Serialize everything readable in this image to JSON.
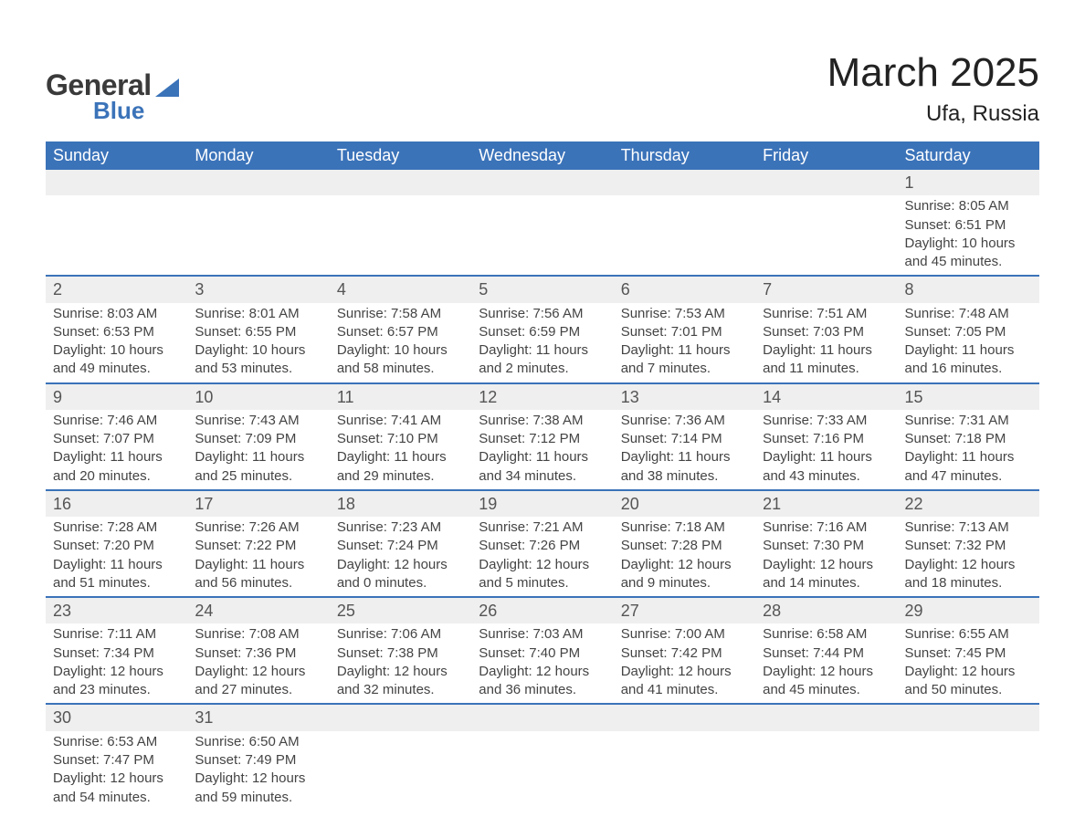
{
  "brand": {
    "word1": "General",
    "word2": "Blue"
  },
  "header": {
    "title": "March 2025",
    "location": "Ufa, Russia"
  },
  "colors": {
    "header_bg": "#3b73b9",
    "header_text": "#ffffff",
    "daynum_bg": "#efefef",
    "row_divider": "#3b73b9",
    "body_text": "#444444",
    "page_bg": "#ffffff"
  },
  "typography": {
    "title_fontsize": 44,
    "location_fontsize": 24,
    "weekday_fontsize": 18,
    "daynum_fontsize": 18,
    "cell_fontsize": 15
  },
  "calendar": {
    "weekdays": [
      "Sunday",
      "Monday",
      "Tuesday",
      "Wednesday",
      "Thursday",
      "Friday",
      "Saturday"
    ],
    "weeks": [
      [
        null,
        null,
        null,
        null,
        null,
        null,
        {
          "day": "1",
          "sunrise": "Sunrise: 8:05 AM",
          "sunset": "Sunset: 6:51 PM",
          "day1": "Daylight: 10 hours",
          "day2": "and 45 minutes."
        }
      ],
      [
        {
          "day": "2",
          "sunrise": "Sunrise: 8:03 AM",
          "sunset": "Sunset: 6:53 PM",
          "day1": "Daylight: 10 hours",
          "day2": "and 49 minutes."
        },
        {
          "day": "3",
          "sunrise": "Sunrise: 8:01 AM",
          "sunset": "Sunset: 6:55 PM",
          "day1": "Daylight: 10 hours",
          "day2": "and 53 minutes."
        },
        {
          "day": "4",
          "sunrise": "Sunrise: 7:58 AM",
          "sunset": "Sunset: 6:57 PM",
          "day1": "Daylight: 10 hours",
          "day2": "and 58 minutes."
        },
        {
          "day": "5",
          "sunrise": "Sunrise: 7:56 AM",
          "sunset": "Sunset: 6:59 PM",
          "day1": "Daylight: 11 hours",
          "day2": "and 2 minutes."
        },
        {
          "day": "6",
          "sunrise": "Sunrise: 7:53 AM",
          "sunset": "Sunset: 7:01 PM",
          "day1": "Daylight: 11 hours",
          "day2": "and 7 minutes."
        },
        {
          "day": "7",
          "sunrise": "Sunrise: 7:51 AM",
          "sunset": "Sunset: 7:03 PM",
          "day1": "Daylight: 11 hours",
          "day2": "and 11 minutes."
        },
        {
          "day": "8",
          "sunrise": "Sunrise: 7:48 AM",
          "sunset": "Sunset: 7:05 PM",
          "day1": "Daylight: 11 hours",
          "day2": "and 16 minutes."
        }
      ],
      [
        {
          "day": "9",
          "sunrise": "Sunrise: 7:46 AM",
          "sunset": "Sunset: 7:07 PM",
          "day1": "Daylight: 11 hours",
          "day2": "and 20 minutes."
        },
        {
          "day": "10",
          "sunrise": "Sunrise: 7:43 AM",
          "sunset": "Sunset: 7:09 PM",
          "day1": "Daylight: 11 hours",
          "day2": "and 25 minutes."
        },
        {
          "day": "11",
          "sunrise": "Sunrise: 7:41 AM",
          "sunset": "Sunset: 7:10 PM",
          "day1": "Daylight: 11 hours",
          "day2": "and 29 minutes."
        },
        {
          "day": "12",
          "sunrise": "Sunrise: 7:38 AM",
          "sunset": "Sunset: 7:12 PM",
          "day1": "Daylight: 11 hours",
          "day2": "and 34 minutes."
        },
        {
          "day": "13",
          "sunrise": "Sunrise: 7:36 AM",
          "sunset": "Sunset: 7:14 PM",
          "day1": "Daylight: 11 hours",
          "day2": "and 38 minutes."
        },
        {
          "day": "14",
          "sunrise": "Sunrise: 7:33 AM",
          "sunset": "Sunset: 7:16 PM",
          "day1": "Daylight: 11 hours",
          "day2": "and 43 minutes."
        },
        {
          "day": "15",
          "sunrise": "Sunrise: 7:31 AM",
          "sunset": "Sunset: 7:18 PM",
          "day1": "Daylight: 11 hours",
          "day2": "and 47 minutes."
        }
      ],
      [
        {
          "day": "16",
          "sunrise": "Sunrise: 7:28 AM",
          "sunset": "Sunset: 7:20 PM",
          "day1": "Daylight: 11 hours",
          "day2": "and 51 minutes."
        },
        {
          "day": "17",
          "sunrise": "Sunrise: 7:26 AM",
          "sunset": "Sunset: 7:22 PM",
          "day1": "Daylight: 11 hours",
          "day2": "and 56 minutes."
        },
        {
          "day": "18",
          "sunrise": "Sunrise: 7:23 AM",
          "sunset": "Sunset: 7:24 PM",
          "day1": "Daylight: 12 hours",
          "day2": "and 0 minutes."
        },
        {
          "day": "19",
          "sunrise": "Sunrise: 7:21 AM",
          "sunset": "Sunset: 7:26 PM",
          "day1": "Daylight: 12 hours",
          "day2": "and 5 minutes."
        },
        {
          "day": "20",
          "sunrise": "Sunrise: 7:18 AM",
          "sunset": "Sunset: 7:28 PM",
          "day1": "Daylight: 12 hours",
          "day2": "and 9 minutes."
        },
        {
          "day": "21",
          "sunrise": "Sunrise: 7:16 AM",
          "sunset": "Sunset: 7:30 PM",
          "day1": "Daylight: 12 hours",
          "day2": "and 14 minutes."
        },
        {
          "day": "22",
          "sunrise": "Sunrise: 7:13 AM",
          "sunset": "Sunset: 7:32 PM",
          "day1": "Daylight: 12 hours",
          "day2": "and 18 minutes."
        }
      ],
      [
        {
          "day": "23",
          "sunrise": "Sunrise: 7:11 AM",
          "sunset": "Sunset: 7:34 PM",
          "day1": "Daylight: 12 hours",
          "day2": "and 23 minutes."
        },
        {
          "day": "24",
          "sunrise": "Sunrise: 7:08 AM",
          "sunset": "Sunset: 7:36 PM",
          "day1": "Daylight: 12 hours",
          "day2": "and 27 minutes."
        },
        {
          "day": "25",
          "sunrise": "Sunrise: 7:06 AM",
          "sunset": "Sunset: 7:38 PM",
          "day1": "Daylight: 12 hours",
          "day2": "and 32 minutes."
        },
        {
          "day": "26",
          "sunrise": "Sunrise: 7:03 AM",
          "sunset": "Sunset: 7:40 PM",
          "day1": "Daylight: 12 hours",
          "day2": "and 36 minutes."
        },
        {
          "day": "27",
          "sunrise": "Sunrise: 7:00 AM",
          "sunset": "Sunset: 7:42 PM",
          "day1": "Daylight: 12 hours",
          "day2": "and 41 minutes."
        },
        {
          "day": "28",
          "sunrise": "Sunrise: 6:58 AM",
          "sunset": "Sunset: 7:44 PM",
          "day1": "Daylight: 12 hours",
          "day2": "and 45 minutes."
        },
        {
          "day": "29",
          "sunrise": "Sunrise: 6:55 AM",
          "sunset": "Sunset: 7:45 PM",
          "day1": "Daylight: 12 hours",
          "day2": "and 50 minutes."
        }
      ],
      [
        {
          "day": "30",
          "sunrise": "Sunrise: 6:53 AM",
          "sunset": "Sunset: 7:47 PM",
          "day1": "Daylight: 12 hours",
          "day2": "and 54 minutes."
        },
        {
          "day": "31",
          "sunrise": "Sunrise: 6:50 AM",
          "sunset": "Sunset: 7:49 PM",
          "day1": "Daylight: 12 hours",
          "day2": "and 59 minutes."
        },
        null,
        null,
        null,
        null,
        null
      ]
    ]
  }
}
